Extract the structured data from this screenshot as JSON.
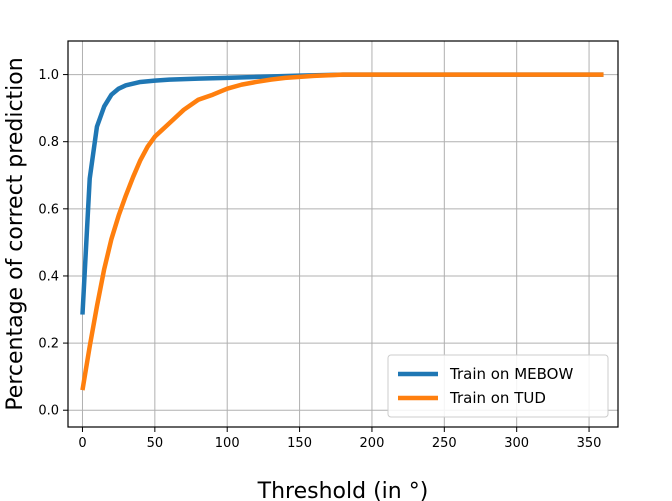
{
  "chart_data": {
    "type": "line",
    "title": "",
    "xlabel": "Threshold (in °)",
    "ylabel": "Percentage of correct prediction",
    "xlim": [
      -10,
      370
    ],
    "ylim": [
      -0.05,
      1.1
    ],
    "x_ticks": [
      0,
      50,
      100,
      150,
      200,
      250,
      300,
      350
    ],
    "y_ticks": [
      0.0,
      0.2,
      0.4,
      0.6,
      0.8,
      1.0
    ],
    "x_tick_labels": [
      "0",
      "50",
      "100",
      "150",
      "200",
      "250",
      "300",
      "350"
    ],
    "y_tick_labels": [
      "0.0",
      "0.2",
      "0.4",
      "0.6",
      "0.8",
      "1.0"
    ],
    "grid": true,
    "legend_position": "bottom-right",
    "series": [
      {
        "name": "Train on MEBOW",
        "color": "#1f77b4",
        "x": [
          0,
          5,
          10,
          15,
          20,
          25,
          30,
          40,
          50,
          60,
          80,
          100,
          120,
          150,
          180,
          250,
          360
        ],
        "y": [
          0.285,
          0.69,
          0.845,
          0.905,
          0.94,
          0.958,
          0.968,
          0.978,
          0.982,
          0.985,
          0.988,
          0.99,
          0.993,
          0.997,
          1.0,
          1.0,
          1.0
        ]
      },
      {
        "name": "Train on TUD",
        "color": "#ff7f0e",
        "x": [
          0,
          5,
          10,
          15,
          20,
          25,
          30,
          35,
          40,
          45,
          50,
          55,
          60,
          70,
          80,
          90,
          100,
          110,
          120,
          130,
          140,
          150,
          160,
          170,
          180,
          250,
          360
        ],
        "y": [
          0.06,
          0.19,
          0.31,
          0.42,
          0.51,
          0.58,
          0.64,
          0.695,
          0.745,
          0.785,
          0.815,
          0.835,
          0.855,
          0.895,
          0.925,
          0.94,
          0.958,
          0.97,
          0.978,
          0.985,
          0.99,
          0.993,
          0.996,
          0.998,
          1.0,
          1.0,
          1.0
        ]
      }
    ]
  }
}
